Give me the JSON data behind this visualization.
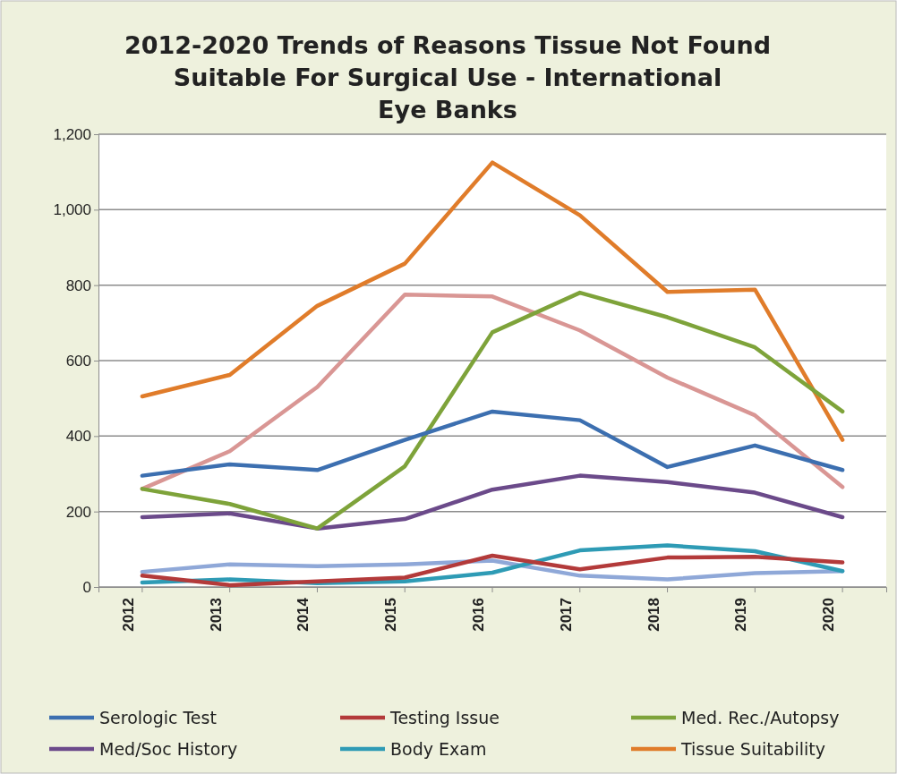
{
  "chart_data": {
    "type": "line",
    "title": "2012-2020 Trends of Reasons Tissue Not Found Suitable For Surgical Use - International Eye Banks",
    "categories": [
      "2012",
      "2013",
      "2014",
      "2015",
      "2016",
      "2017",
      "2018",
      "2019",
      "2020"
    ],
    "ylim": [
      0,
      1200
    ],
    "yticks": [
      0,
      {
        "value": 200,
        "label": "200"
      },
      {
        "value": 400,
        "label": "400"
      },
      {
        "value": 600,
        "label": "600"
      },
      {
        "value": 800,
        "label": "800"
      },
      {
        "value": 1000,
        "label": "1,000"
      },
      {
        "value": 1200,
        "label": "1,200"
      }
    ],
    "grid": "y",
    "legend": "bottom",
    "line_style": "solid",
    "marker": "none",
    "series": [
      {
        "name": "Serologic Test",
        "color": "#3c6fb0",
        "values": [
          295,
          325,
          310,
          390,
          465,
          442,
          318,
          375,
          310
        ]
      },
      {
        "name": "Testing Issue",
        "color": "#b33a3a",
        "values": [
          30,
          5,
          15,
          25,
          83,
          47,
          78,
          80,
          65
        ]
      },
      {
        "name": "Med. Rec./Autopsy",
        "color": "#7ea33a",
        "values": [
          260,
          220,
          155,
          320,
          675,
          780,
          715,
          635,
          465
        ]
      },
      {
        "name": "Med/Soc History",
        "color": "#6b4a8a",
        "values": [
          185,
          195,
          155,
          180,
          258,
          295,
          278,
          250,
          185
        ]
      },
      {
        "name": "Body Exam",
        "color": "#2e9bb5",
        "values": [
          12,
          20,
          10,
          15,
          38,
          97,
          110,
          95,
          42
        ]
      },
      {
        "name": "Tissue Suitability",
        "color": "#e07c2a",
        "values": [
          505,
          562,
          745,
          857,
          1125,
          985,
          782,
          788,
          390
        ]
      },
      {
        "color": "#d99694",
        "values": [
          260,
          360,
          530,
          775,
          770,
          680,
          555,
          455,
          265
        ]
      },
      {
        "color": "#8fa8d8",
        "values": [
          40,
          60,
          55,
          60,
          70,
          30,
          20,
          37,
          42
        ]
      }
    ]
  }
}
